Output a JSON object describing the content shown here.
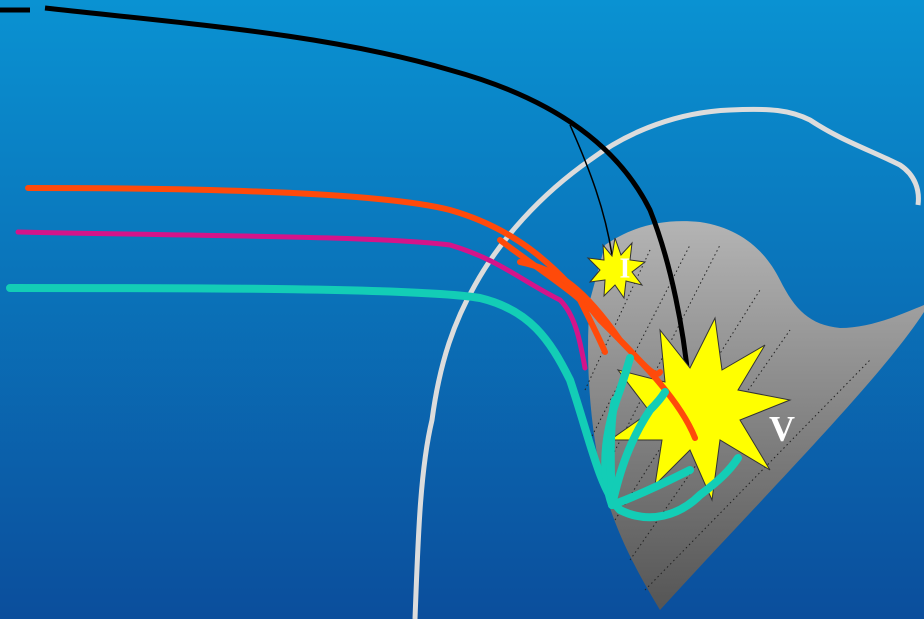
{
  "labels": {
    "small_burst": "I",
    "large_burst": "V"
  }
}
